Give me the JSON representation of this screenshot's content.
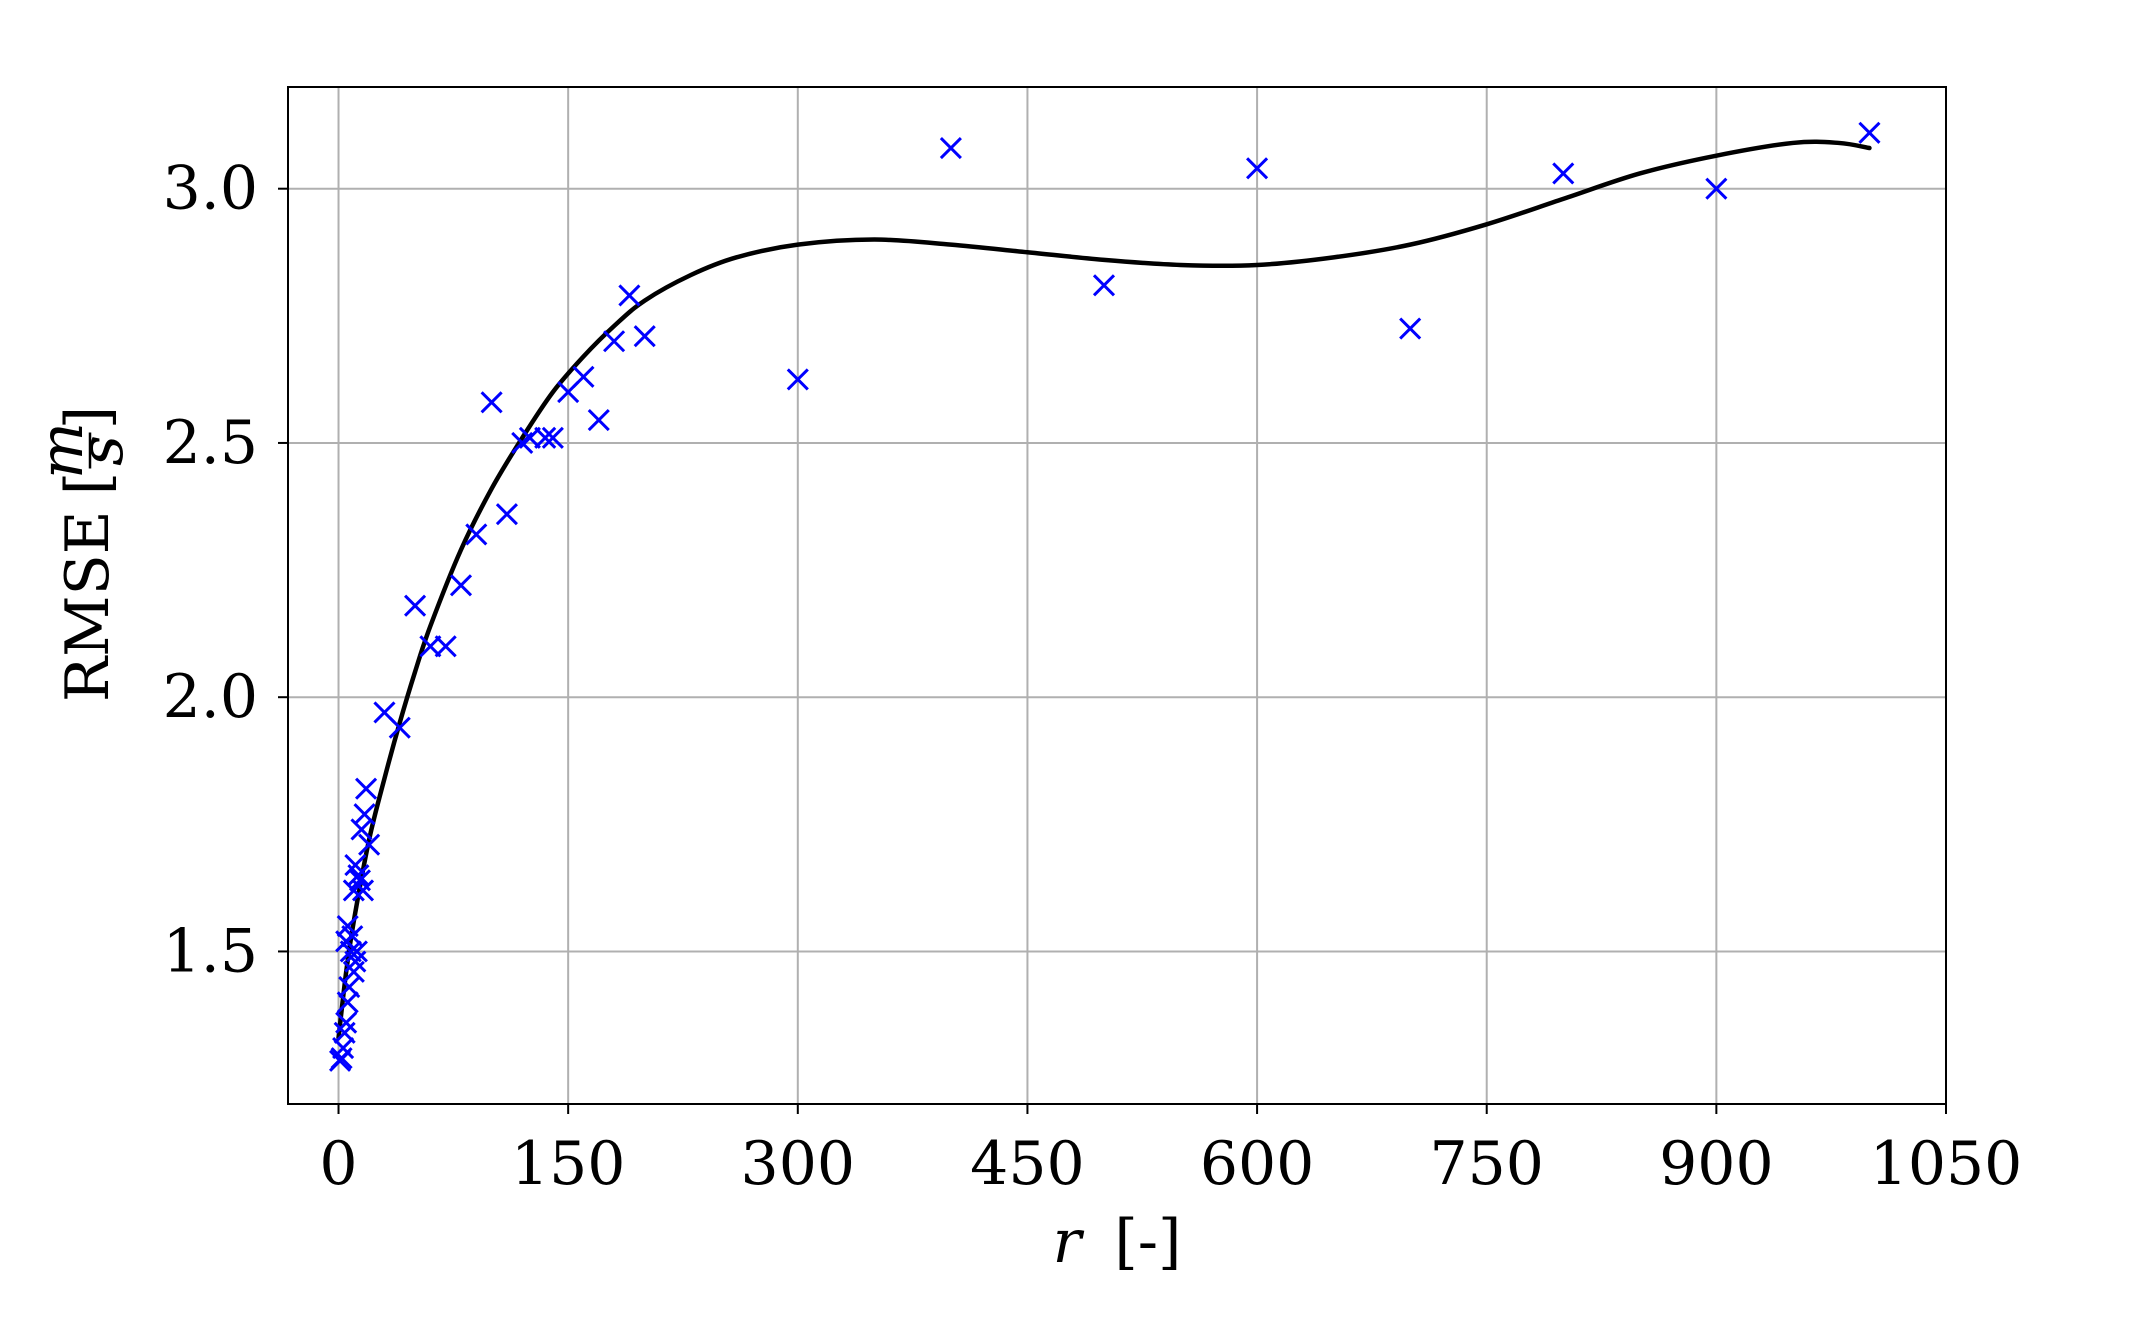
{
  "chart_data": {
    "type": "scatter",
    "title": "",
    "xlabel_var": "r",
    "xlabel_unit": "[-]",
    "ylabel_text": "RMSE",
    "ylabel_unit_num": "m",
    "ylabel_unit_den": "s",
    "xlim": [
      -33,
      1050
    ],
    "ylim": [
      1.2,
      3.2
    ],
    "x_ticks": [
      0,
      150,
      300,
      450,
      600,
      750,
      900,
      1050
    ],
    "x_tick_labels": [
      "0",
      "150",
      "300",
      "450",
      "600",
      "750",
      "900",
      "1050"
    ],
    "y_ticks": [
      1.5,
      2.0,
      2.5,
      3.0
    ],
    "y_tick_labels": [
      "1.5",
      "2.0",
      "2.5",
      "3.0"
    ],
    "grid": true,
    "legend": "none",
    "marker_color": "#0000ff",
    "curve_color": "#000000",
    "series": [
      {
        "kind": "scatter",
        "marker": "x",
        "points": [
          [
            1,
            1.285
          ],
          [
            2,
            1.29
          ],
          [
            3,
            1.31
          ],
          [
            4,
            1.34
          ],
          [
            5,
            1.36
          ],
          [
            5,
            1.52
          ],
          [
            6,
            1.4
          ],
          [
            6,
            1.55
          ],
          [
            7,
            1.43
          ],
          [
            8,
            1.5
          ],
          [
            9,
            1.53
          ],
          [
            10,
            1.46
          ],
          [
            10,
            1.62
          ],
          [
            11,
            1.48
          ],
          [
            11,
            1.67
          ],
          [
            12,
            1.5
          ],
          [
            13,
            1.65
          ],
          [
            14,
            1.64
          ],
          [
            15,
            1.74
          ],
          [
            16,
            1.62
          ],
          [
            17,
            1.77
          ],
          [
            18,
            1.82
          ],
          [
            20,
            1.71
          ],
          [
            30,
            1.97
          ],
          [
            40,
            1.94
          ],
          [
            50,
            2.18
          ],
          [
            60,
            2.1
          ],
          [
            70,
            2.1
          ],
          [
            80,
            2.22
          ],
          [
            90,
            2.32
          ],
          [
            100,
            2.58
          ],
          [
            110,
            2.36
          ],
          [
            120,
            2.5
          ],
          [
            125,
            2.51
          ],
          [
            135,
            2.51
          ],
          [
            140,
            2.51
          ],
          [
            150,
            2.6
          ],
          [
            160,
            2.63
          ],
          [
            170,
            2.545
          ],
          [
            180,
            2.7
          ],
          [
            190,
            2.79
          ],
          [
            200,
            2.71
          ],
          [
            300,
            2.625
          ],
          [
            400,
            3.08
          ],
          [
            500,
            2.81
          ],
          [
            600,
            3.04
          ],
          [
            700,
            2.725
          ],
          [
            800,
            3.03
          ],
          [
            900,
            3.0
          ],
          [
            1000,
            3.11
          ]
        ]
      },
      {
        "kind": "line",
        "points": [
          [
            0,
            1.33
          ],
          [
            5,
            1.46
          ],
          [
            10,
            1.56
          ],
          [
            20,
            1.72
          ],
          [
            30,
            1.84
          ],
          [
            40,
            1.95
          ],
          [
            50,
            2.05
          ],
          [
            60,
            2.14
          ],
          [
            80,
            2.29
          ],
          [
            100,
            2.41
          ],
          [
            120,
            2.51
          ],
          [
            140,
            2.6
          ],
          [
            160,
            2.67
          ],
          [
            180,
            2.73
          ],
          [
            200,
            2.78
          ],
          [
            230,
            2.83
          ],
          [
            260,
            2.865
          ],
          [
            300,
            2.89
          ],
          [
            350,
            2.9
          ],
          [
            400,
            2.89
          ],
          [
            450,
            2.875
          ],
          [
            500,
            2.86
          ],
          [
            550,
            2.85
          ],
          [
            600,
            2.85
          ],
          [
            650,
            2.865
          ],
          [
            700,
            2.89
          ],
          [
            750,
            2.93
          ],
          [
            800,
            2.98
          ],
          [
            850,
            3.03
          ],
          [
            900,
            3.065
          ],
          [
            950,
            3.09
          ],
          [
            980,
            3.09
          ],
          [
            1000,
            3.08
          ]
        ]
      }
    ]
  }
}
